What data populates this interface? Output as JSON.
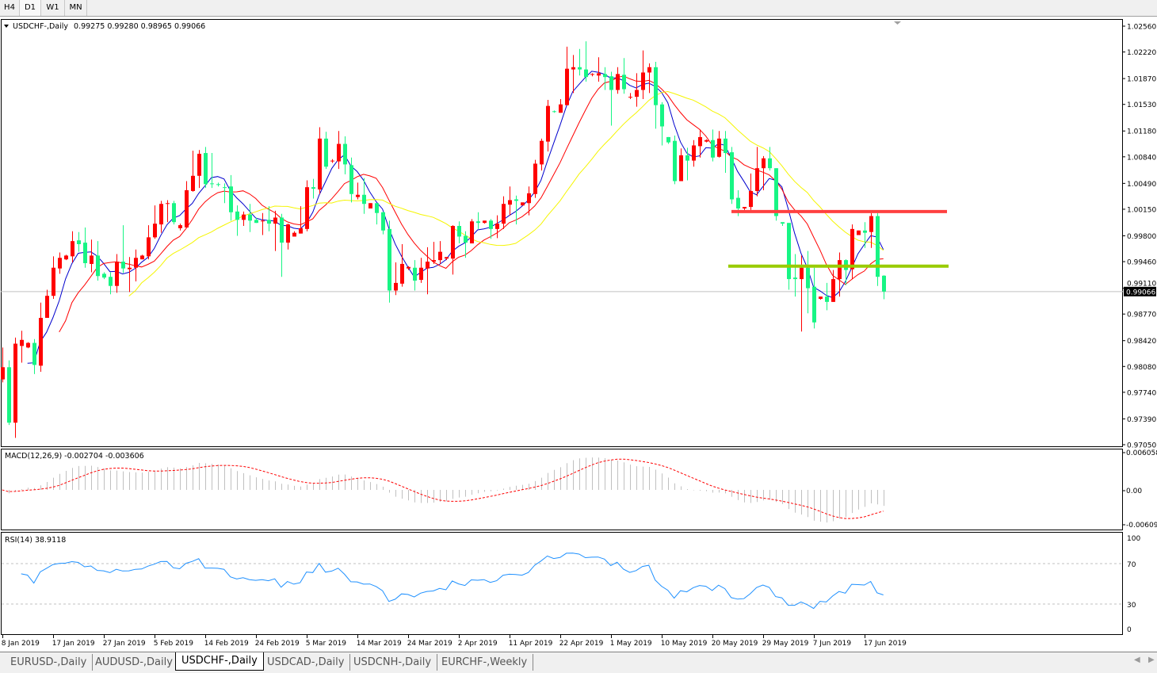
{
  "toolbar": {
    "timeframes": [
      {
        "label": "H4"
      },
      {
        "label": "D1",
        "selected": true
      },
      {
        "label": "W1"
      },
      {
        "label": "MN"
      }
    ]
  },
  "chart_header": {
    "symbol": "USDCHF-,Daily",
    "ohlc": "0.99275 0.99280 0.98965 0.99066"
  },
  "macd_header": "MACD(12,26,9) -0.002704 -0.003606",
  "rsi_header": "RSI(14) 38.9118",
  "current_price": "0.99066",
  "colors": {
    "bull": "#ff0000",
    "bear": "#17f584",
    "ma_fast": "#0000cd",
    "ma_mid": "#ff0000",
    "ma_slow": "#f5f500",
    "macd_hist": "#c0c0c0",
    "macd_signal": "#ff0000",
    "rsi": "#1e90ff",
    "resistance": "#ff4040",
    "support": "#99cc00"
  },
  "tabs": [
    {
      "label": "EURUSD-,Daily"
    },
    {
      "label": "AUDUSD-,Daily"
    },
    {
      "label": "USDCHF-,Daily",
      "active": true
    },
    {
      "label": "USDCAD-,Daily"
    },
    {
      "label": "USDCNH-,Daily"
    },
    {
      "label": "EURCHF-,Weekly"
    }
  ],
  "chart_data": {
    "type": "candlestick",
    "symbol": "USDCHF-",
    "timeframe": "Daily",
    "ylim": [
      0.9705,
      1.0256
    ],
    "price_ticks": [
      "1.02560",
      "1.02220",
      "1.01870",
      "1.01530",
      "1.01180",
      "1.00840",
      "1.00490",
      "1.00150",
      "0.99800",
      "0.99460",
      "0.99110",
      "0.98770",
      "0.98420",
      "0.98080",
      "0.97740",
      "0.97390",
      "0.97050"
    ],
    "date_labels": [
      "8 Jan 2019",
      "17 Jan 2019",
      "27 Jan 2019",
      "5 Feb 2019",
      "14 Feb 2019",
      "24 Feb 2019",
      "5 Mar 2019",
      "14 Mar 2019",
      "24 Mar 2019",
      "2 Apr 2019",
      "11 Apr 2019",
      "22 Apr 2019",
      "1 May 2019",
      "10 May 2019",
      "20 May 2019",
      "29 May 2019",
      "7 Jun 2019",
      "17 Jun 2019"
    ],
    "horizontal_lines": [
      {
        "price": 1.0012,
        "role": "resistance"
      },
      {
        "price": 0.994,
        "role": "support"
      }
    ],
    "candles_ohlc": [
      [
        0.9791,
        0.9833,
        0.9787,
        0.9807
      ],
      [
        0.9807,
        0.9816,
        0.9731,
        0.9734
      ],
      [
        0.9734,
        0.9846,
        0.9714,
        0.9838
      ],
      [
        0.9835,
        0.9855,
        0.9813,
        0.9843
      ],
      [
        0.9833,
        0.984,
        0.9832,
        0.9839
      ],
      [
        0.9839,
        0.9844,
        0.9798,
        0.981
      ],
      [
        0.9809,
        0.9892,
        0.9801,
        0.9872
      ],
      [
        0.9872,
        0.9909,
        0.9872,
        0.9901
      ],
      [
        0.9901,
        0.9953,
        0.9897,
        0.9938
      ],
      [
        0.9937,
        0.9958,
        0.993,
        0.9951
      ],
      [
        0.9949,
        0.9955,
        0.9948,
        0.9954
      ],
      [
        0.9953,
        0.9986,
        0.9945,
        0.9973
      ],
      [
        0.9974,
        0.9985,
        0.9959,
        0.9969
      ],
      [
        0.9971,
        0.9991,
        0.9938,
        0.9944
      ],
      [
        0.9943,
        0.9975,
        0.9932,
        0.9954
      ],
      [
        0.9954,
        0.9973,
        0.9921,
        0.9927
      ],
      [
        0.993,
        0.9932,
        0.9923,
        0.9925
      ],
      [
        0.9926,
        0.9932,
        0.9903,
        0.9914
      ],
      [
        0.9914,
        0.9956,
        0.9905,
        0.9946
      ],
      [
        0.9946,
        0.9994,
        0.9931,
        0.9937
      ],
      [
        0.9936,
        0.9952,
        0.9906,
        0.9938
      ],
      [
        0.9938,
        0.9962,
        0.992,
        0.9951
      ],
      [
        0.9949,
        0.9955,
        0.9949,
        0.9954
      ],
      [
        0.9953,
        0.9994,
        0.9949,
        0.9978
      ],
      [
        0.9978,
        1.002,
        0.9976,
        0.9996
      ],
      [
        0.9995,
        1.0026,
        0.9984,
        1.0022
      ],
      [
        1.0022,
        1.0027,
        0.9998,
        1.0023
      ],
      [
        1.0023,
        1.0026,
        0.9995,
        0.9998
      ],
      [
        0.999,
        0.9996,
        0.9987,
        0.9994
      ],
      [
        0.9991,
        1.0052,
        0.9991,
        1.004
      ],
      [
        1.0039,
        1.0092,
        1.0038,
        1.0059
      ],
      [
        1.0059,
        1.0093,
        1.0043,
        1.0088
      ],
      [
        1.0089,
        1.0097,
        1.0043,
        1.0048
      ],
      [
        1.0049,
        1.0089,
        1.0043,
        1.0048
      ],
      [
        1.0048,
        1.005,
        1.0045,
        1.0047
      ],
      [
        1.0044,
        1.0049,
        1.0023,
        1.0043
      ],
      [
        1.0045,
        1.006,
        1.0,
        1.0011
      ],
      [
        1.0012,
        1.002,
        0.998,
        1.0001
      ],
      [
        1.0001,
        1.0012,
        0.9993,
        1.0008
      ],
      [
        1.0008,
        1.0022,
        0.9985,
        1.0
      ],
      [
        1.0001,
        1.0004,
        0.9997,
        0.9997
      ],
      [
        0.9999,
        1.001,
        0.9981,
        1.0
      ],
      [
        1.0001,
        1.0019,
        0.9986,
        0.9996
      ],
      [
        0.9996,
        1.0013,
        0.996,
        1.0004
      ],
      [
        1.0004,
        1.0009,
        0.9926,
        0.9971
      ],
      [
        0.9971,
        0.9996,
        0.9962,
        0.9995
      ],
      [
        0.9979,
        0.9986,
        0.9979,
        0.9984
      ],
      [
        0.9983,
        1.0019,
        0.9983,
        0.999
      ],
      [
        0.9989,
        1.0053,
        0.9986,
        1.0044
      ],
      [
        1.0044,
        1.0055,
        1.0029,
        1.0042
      ],
      [
        1.0041,
        1.0123,
        1.0035,
        1.0108
      ],
      [
        1.0108,
        1.0117,
        1.0068,
        1.0071
      ],
      [
        1.0078,
        1.0081,
        1.0076,
        1.0079
      ],
      [
        1.0078,
        1.0118,
        1.0068,
        1.0101
      ],
      [
        1.0101,
        1.0111,
        1.0061,
        1.0074
      ],
      [
        1.0073,
        1.0083,
        1.0024,
        1.0035
      ],
      [
        1.0031,
        1.005,
        1.0028,
        1.0034
      ],
      [
        1.0034,
        1.0056,
        1.0009,
        1.0022
      ],
      [
        1.0016,
        1.0023,
        1.0016,
        1.0023
      ],
      [
        1.0023,
        1.0023,
        0.9995,
        1.001
      ],
      [
        1.0011,
        1.0012,
        0.9982,
        0.9987
      ],
      [
        0.9989,
        1.0,
        0.9892,
        0.9908
      ],
      [
        0.9908,
        0.9945,
        0.9902,
        0.9918
      ],
      [
        0.9917,
        0.9969,
        0.9913,
        0.9943
      ],
      [
        0.9937,
        0.994,
        0.9935,
        0.9939
      ],
      [
        0.9938,
        0.9948,
        0.9908,
        0.9921
      ],
      [
        0.9922,
        0.9951,
        0.9918,
        0.9938
      ],
      [
        0.9937,
        0.9965,
        0.9903,
        0.9946
      ],
      [
        0.9946,
        0.9972,
        0.9943,
        0.9948
      ],
      [
        0.9948,
        0.9973,
        0.9943,
        0.9959
      ],
      [
        0.995,
        0.9952,
        0.9948,
        0.9952
      ],
      [
        0.995,
        0.9994,
        0.9929,
        0.9993
      ],
      [
        0.9993,
        0.9999,
        0.997,
        0.9979
      ],
      [
        0.998,
        0.9986,
        0.9951,
        0.9971
      ],
      [
        0.997,
        1.0002,
        0.997,
        0.9999
      ],
      [
        0.9999,
        1.0011,
        0.9989,
        0.9997
      ],
      [
        0.9997,
        1.0,
        0.9996,
        1.0
      ],
      [
        1.0,
        1.0002,
        0.9976,
        0.9989
      ],
      [
        0.9989,
        1.0007,
        0.9977,
        0.9996
      ],
      [
        0.9996,
        1.0032,
        0.9989,
        1.0022
      ],
      [
        1.0021,
        1.0045,
        1.0007,
        1.0027
      ],
      [
        1.0028,
        1.0033,
        0.9995,
        1.0026
      ],
      [
        1.002,
        1.0024,
        1.002,
        1.0024
      ],
      [
        1.0023,
        1.0045,
        1.0007,
        1.0036
      ],
      [
        1.0035,
        1.008,
        1.003,
        1.0075
      ],
      [
        1.0074,
        1.0108,
        1.0066,
        1.0105
      ],
      [
        1.0104,
        1.0159,
        1.0091,
        1.0151
      ],
      [
        1.0144,
        1.0145,
        1.0142,
        1.0143
      ],
      [
        1.0142,
        1.016,
        1.0142,
        1.0153
      ],
      [
        1.0152,
        1.0229,
        1.0152,
        1.02
      ],
      [
        1.0199,
        1.0218,
        1.0168,
        1.0202
      ],
      [
        1.0202,
        1.0226,
        1.0191,
        1.0199
      ],
      [
        1.0199,
        1.0236,
        1.0183,
        1.0189
      ],
      [
        1.0192,
        1.0194,
        1.019,
        1.0193
      ],
      [
        1.0191,
        1.0215,
        1.0183,
        1.0194
      ],
      [
        1.0193,
        1.0202,
        1.0172,
        1.0189
      ],
      [
        1.019,
        1.0196,
        1.0125,
        1.0172
      ],
      [
        1.0172,
        1.0202,
        1.0167,
        1.0193
      ],
      [
        1.0192,
        1.0214,
        1.0167,
        1.0173
      ],
      [
        1.0162,
        1.0168,
        1.016,
        1.0163
      ],
      [
        1.0163,
        1.0194,
        1.015,
        1.0172
      ],
      [
        1.0172,
        1.0224,
        1.016,
        1.0195
      ],
      [
        1.0195,
        1.0207,
        1.0168,
        1.0202
      ],
      [
        1.0202,
        1.0209,
        1.0121,
        1.0152
      ],
      [
        1.0153,
        1.0156,
        1.0099,
        1.0124
      ],
      [
        1.011,
        1.011,
        1.0101,
        1.0103
      ],
      [
        1.0105,
        1.0112,
        1.0048,
        1.0052
      ],
      [
        1.0052,
        1.0095,
        1.0052,
        1.0086
      ],
      [
        1.0086,
        1.0096,
        1.0053,
        1.0079
      ],
      [
        1.0079,
        1.0106,
        1.0071,
        1.0099
      ],
      [
        1.0098,
        1.012,
        1.0083,
        1.011
      ],
      [
        1.0104,
        1.0107,
        1.0103,
        1.0106
      ],
      [
        1.0106,
        1.012,
        1.0078,
        1.0083
      ],
      [
        1.0084,
        1.0118,
        1.0083,
        1.0108
      ],
      [
        1.0108,
        1.0118,
        1.0063,
        1.0089
      ],
      [
        1.009,
        1.0097,
        1.0022,
        1.0028
      ],
      [
        1.003,
        1.004,
        1.0006,
        1.0016
      ],
      [
        1.0016,
        1.0018,
        1.0014,
        1.0018
      ],
      [
        1.0018,
        1.0062,
        1.0014,
        1.0039
      ],
      [
        1.0039,
        1.0097,
        1.0032,
        1.0069
      ],
      [
        1.0069,
        1.0085,
        1.004,
        1.0082
      ],
      [
        1.0082,
        1.0097,
        1.0066,
        1.0069
      ],
      [
        1.0069,
        1.0069,
        1.0,
        1.0006
      ],
      [
        0.9998,
        0.9998,
        0.9993,
        0.9996
      ],
      [
        0.9997,
        0.9997,
        0.9909,
        0.9923
      ],
      [
        0.9925,
        0.9956,
        0.99,
        0.9923
      ],
      [
        0.9923,
        0.9954,
        0.9854,
        0.9938
      ],
      [
        0.9938,
        0.996,
        0.9878,
        0.9911
      ],
      [
        0.9913,
        0.9938,
        0.9858,
        0.9866
      ],
      [
        0.9897,
        0.99,
        0.9896,
        0.99
      ],
      [
        0.99,
        0.9918,
        0.9882,
        0.9893
      ],
      [
        0.9893,
        0.9935,
        0.9893,
        0.9923
      ],
      [
        0.9923,
        0.9958,
        0.99,
        0.9948
      ],
      [
        0.9948,
        0.9949,
        0.9915,
        0.9935
      ],
      [
        0.9936,
        0.9995,
        0.9923,
        0.9989
      ],
      [
        0.9981,
        0.9987,
        0.9981,
        0.9987
      ],
      [
        0.9987,
        0.9998,
        0.9964,
        0.9984
      ],
      [
        0.9985,
        1.001,
        0.9964,
        1.0006
      ],
      [
        1.0006,
        1.001,
        0.9914,
        0.9926
      ],
      [
        0.99275,
        0.9928,
        0.98965,
        0.99066
      ]
    ],
    "macd": {
      "label": "MACD(12,26,9)",
      "ylim": [
        -0.006096,
        0.006058
      ],
      "ticks": [
        "0.006058",
        "0.00",
        "-0.006096"
      ]
    },
    "rsi": {
      "label": "RSI(14)",
      "ylim": [
        0,
        100
      ],
      "levels": [
        70,
        30
      ],
      "ticks": [
        "100",
        "70",
        "30",
        "0"
      ]
    }
  }
}
